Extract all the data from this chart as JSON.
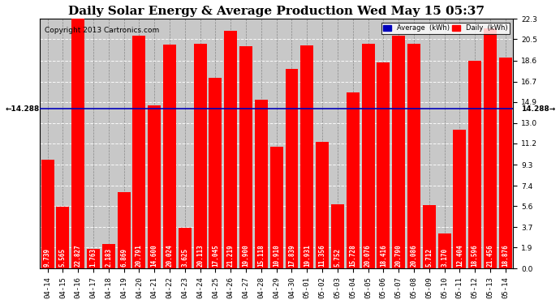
{
  "title": "Daily Solar Energy & Average Production Wed May 15 05:37",
  "copyright": "Copyright 2013 Cartronics.com",
  "categories": [
    "04-14",
    "04-15",
    "04-16",
    "04-17",
    "04-18",
    "04-19",
    "04-20",
    "04-21",
    "04-22",
    "04-23",
    "04-24",
    "04-25",
    "04-26",
    "04-27",
    "04-28",
    "04-29",
    "04-30",
    "05-01",
    "05-02",
    "05-03",
    "05-04",
    "05-05",
    "05-06",
    "05-07",
    "05-08",
    "05-09",
    "05-10",
    "05-11",
    "05-12",
    "05-13",
    "05-14"
  ],
  "values": [
    9.739,
    5.565,
    22.827,
    1.763,
    2.183,
    6.869,
    20.791,
    14.6,
    20.024,
    3.625,
    20.113,
    17.045,
    21.219,
    19.9,
    15.118,
    10.91,
    17.839,
    19.931,
    11.356,
    5.752,
    15.728,
    20.076,
    18.416,
    20.79,
    20.086,
    5.712,
    3.17,
    12.404,
    18.596,
    21.456,
    18.876
  ],
  "average_line": 14.288,
  "bar_color": "#ff0000",
  "avg_line_color": "#0000bb",
  "background_color": "#ffffff",
  "plot_background": "#c8c8c8",
  "yticks": [
    0.0,
    1.9,
    3.7,
    5.6,
    7.4,
    9.3,
    11.2,
    13.0,
    14.9,
    16.7,
    18.6,
    20.5,
    22.3
  ],
  "ylim": [
    0.0,
    22.3
  ],
  "avg_label": "14.288",
  "legend_avg_color": "#0000bb",
  "legend_daily_color": "#ff0000",
  "legend_avg_text": "Average  (kWh)",
  "legend_daily_text": "Daily  (kWh)",
  "title_fontsize": 11,
  "tick_fontsize": 6.5,
  "val_label_fontsize": 5.5,
  "avg_label_fontsize": 6.5,
  "copyright_fontsize": 6.5
}
